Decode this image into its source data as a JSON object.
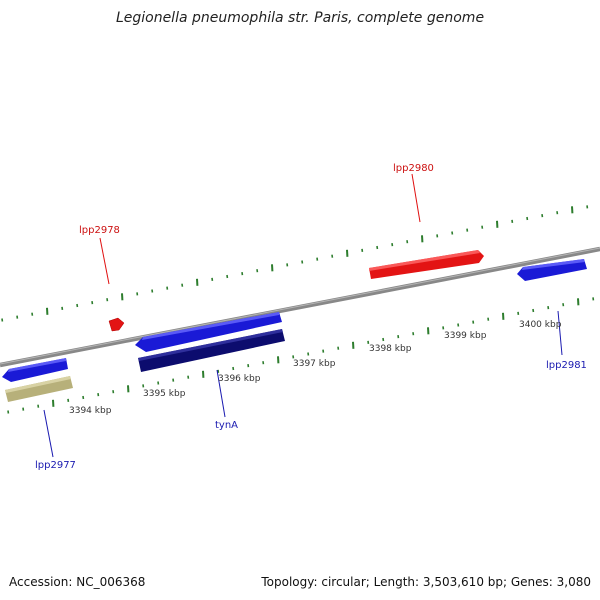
{
  "title": "Legionella pneumophila str. Paris, complete genome",
  "footer": {
    "accession": "Accession: NC_006368",
    "summary": "Topology: circular; Length: 3,503,610 bp; Genes: 3,080"
  },
  "colors": {
    "backbone": "#8c8c8c",
    "tick": "#2d7d2d",
    "forward_gene": "#e01b1b",
    "reverse_gene": "#1a1ad6",
    "reverse_gene_dark": "#0c0c6e",
    "rna_gene": "#b7b07a",
    "label_forward": "#cc1111",
    "label_reverse": "#1a1ab0"
  },
  "scale_labels": [
    "3394 kbp",
    "3395 kbp",
    "3396 kbp",
    "3397 kbp",
    "3398 kbp",
    "3399 kbp",
    "3400 kbp"
  ],
  "gene_labels": {
    "lpp2978": "lpp2978",
    "lpp2980": "lpp2980",
    "lpp2977": "lpp2977",
    "tynA": "tynA",
    "lpp2981": "lpp2981"
  }
}
